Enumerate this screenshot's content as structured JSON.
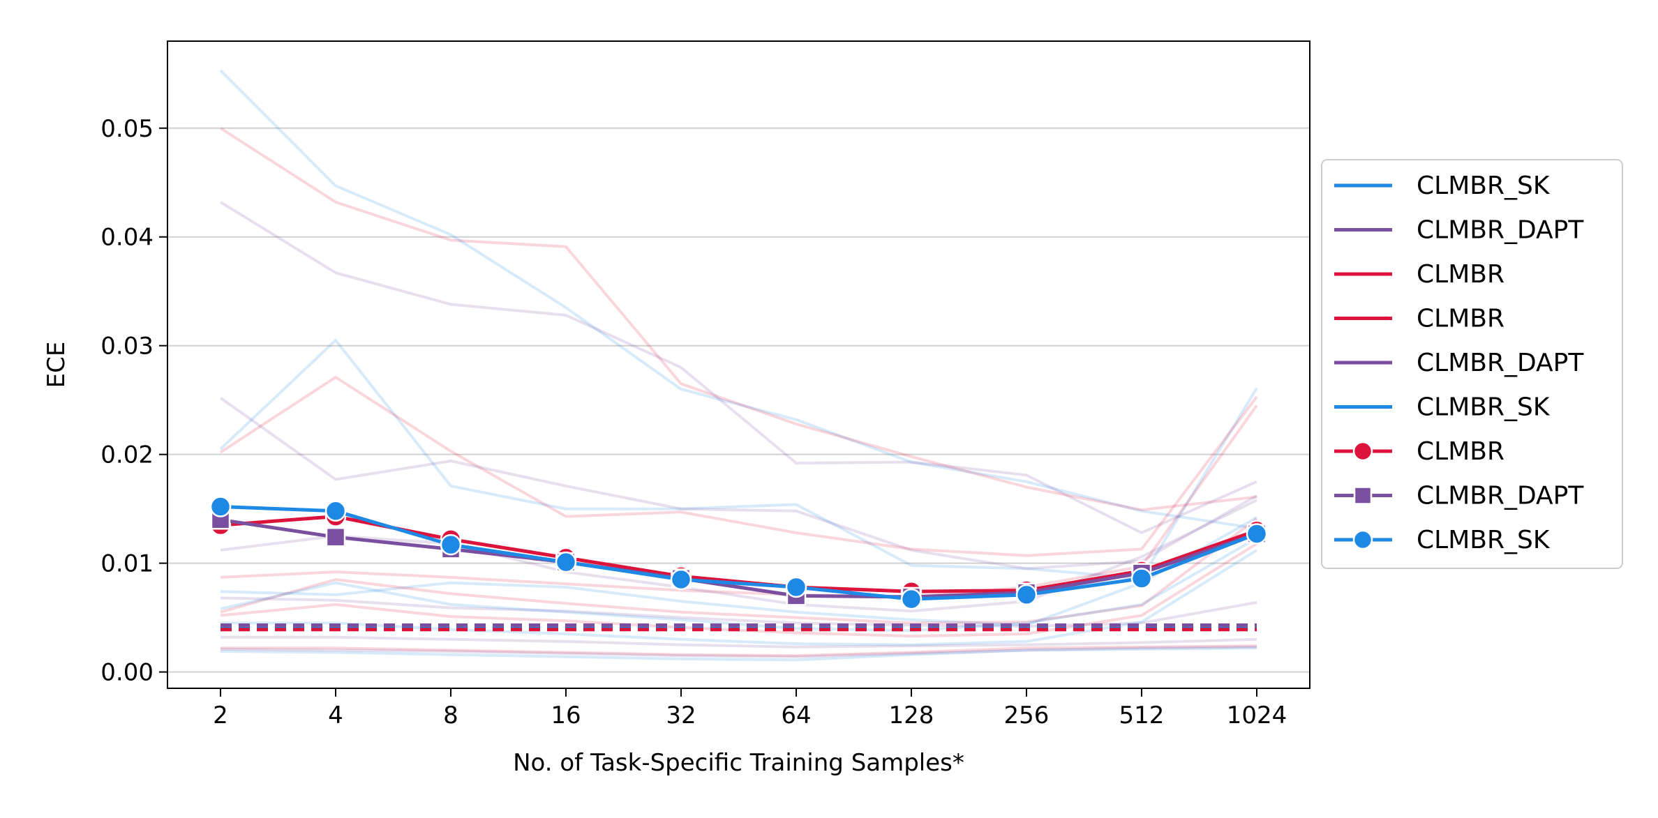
{
  "chart_data": {
    "type": "line",
    "title": "",
    "xlabel": "No. of Task-Specific Training Samples*",
    "ylabel": "ECE",
    "x_categories": [
      "2",
      "4",
      "8",
      "16",
      "32",
      "64",
      "128",
      "256",
      "512",
      "1024"
    ],
    "ylim": [
      -0.0015,
      0.058
    ],
    "yticks": [
      0.0,
      0.01,
      0.02,
      0.03,
      0.04,
      0.05
    ],
    "ytick_labels": [
      "0.00",
      "0.01",
      "0.02",
      "0.03",
      "0.04",
      "0.05"
    ],
    "grid": "horizontal",
    "legend_position": "right",
    "colors": {
      "CLMBR": "#dc143c",
      "CLMBR_DAPT": "#7b4fa0",
      "CLMBR_SK": "#1e88e5"
    },
    "baselines": [
      {
        "name": "CLMBR_SK",
        "value": 0.0041,
        "style": "dashed"
      },
      {
        "name": "CLMBR_DAPT",
        "value": 0.0043,
        "style": "dashed"
      },
      {
        "name": "CLMBR",
        "value": 0.0039,
        "style": "dashed"
      }
    ],
    "series": [
      {
        "name": "CLMBR",
        "marker": "circle",
        "values": [
          0.0135,
          0.0143,
          0.0122,
          0.0105,
          0.0088,
          0.0078,
          0.0074,
          0.0075,
          0.0093,
          0.013
        ]
      },
      {
        "name": "CLMBR_DAPT",
        "marker": "square",
        "values": [
          0.014,
          0.0124,
          0.0113,
          0.0101,
          0.0086,
          0.007,
          0.0069,
          0.0073,
          0.0091,
          0.0127
        ]
      },
      {
        "name": "CLMBR_SK",
        "marker": "circle",
        "values": [
          0.0152,
          0.0148,
          0.0117,
          0.0101,
          0.0085,
          0.0078,
          0.0067,
          0.0071,
          0.0086,
          0.0127
        ]
      }
    ],
    "background_series": [
      {
        "group": "CLMBR_SK",
        "values": [
          0.0553,
          0.0447,
          0.0402,
          0.0335,
          0.026,
          0.0232,
          0.0193,
          0.0175,
          0.0148,
          0.0132
        ]
      },
      {
        "group": "CLMBR",
        "values": [
          0.05,
          0.0432,
          0.0397,
          0.0391,
          0.0265,
          0.0228,
          0.0198,
          0.017,
          0.0149,
          0.0161
        ]
      },
      {
        "group": "CLMBR_DAPT",
        "values": [
          0.0432,
          0.0367,
          0.0338,
          0.0328,
          0.028,
          0.0192,
          0.0193,
          0.0181,
          0.0128,
          0.0175
        ]
      },
      {
        "group": "CLMBR_SK",
        "values": [
          0.0205,
          0.0305,
          0.0171,
          0.015,
          0.015,
          0.0154,
          0.0098,
          0.0095,
          0.0086,
          0.0261
        ]
      },
      {
        "group": "CLMBR",
        "values": [
          0.0202,
          0.0271,
          0.0203,
          0.0143,
          0.0147,
          0.0128,
          0.0113,
          0.0107,
          0.0113,
          0.0253
        ]
      },
      {
        "group": "CLMBR_DAPT",
        "values": [
          0.0252,
          0.0177,
          0.0194,
          0.0171,
          0.015,
          0.0148,
          0.0112,
          0.0095,
          0.0102,
          0.0162
        ]
      },
      {
        "group": "CLMBR",
        "values": [
          0.0087,
          0.0092,
          0.0087,
          0.0081,
          0.0075,
          0.0071,
          0.0069,
          0.0078,
          0.0097,
          0.0245
        ]
      },
      {
        "group": "CLMBR_SK",
        "values": [
          0.0074,
          0.0071,
          0.0082,
          0.0078,
          0.0065,
          0.0055,
          0.0048,
          0.0043,
          0.0082,
          0.0142
        ]
      },
      {
        "group": "CLMBR_DAPT",
        "values": [
          0.0112,
          0.0125,
          0.0118,
          0.0092,
          0.0078,
          0.0062,
          0.0056,
          0.0065,
          0.0106,
          0.0158
        ]
      },
      {
        "group": "CLMBR",
        "values": [
          0.0055,
          0.0085,
          0.0072,
          0.0063,
          0.0055,
          0.005,
          0.0045,
          0.0046,
          0.0061,
          0.0141
        ]
      },
      {
        "group": "CLMBR_DAPT",
        "values": [
          0.0068,
          0.0066,
          0.0059,
          0.0056,
          0.005,
          0.0045,
          0.0043,
          0.0042,
          0.0045,
          0.0064
        ]
      },
      {
        "group": "CLMBR_SK",
        "values": [
          0.0058,
          0.0082,
          0.0062,
          0.0055,
          0.0048,
          0.004,
          0.0038,
          0.0045,
          0.0062,
          0.0123
        ]
      },
      {
        "group": "CLMBR",
        "values": [
          0.0052,
          0.0062,
          0.0051,
          0.0047,
          0.0041,
          0.0036,
          0.0033,
          0.0035,
          0.0052,
          0.0118
        ]
      },
      {
        "group": "CLMBR_SK",
        "values": [
          0.0045,
          0.0045,
          0.0039,
          0.0035,
          0.003,
          0.0026,
          0.0025,
          0.0028,
          0.0046,
          0.0112
        ]
      },
      {
        "group": "CLMBR_DAPT",
        "values": [
          0.0032,
          0.0032,
          0.003,
          0.0028,
          0.0025,
          0.0023,
          0.0024,
          0.0025,
          0.0027,
          0.003
        ]
      },
      {
        "group": "CLMBR",
        "values": [
          0.0022,
          0.0022,
          0.002,
          0.0018,
          0.0016,
          0.0015,
          0.0018,
          0.0022,
          0.0023,
          0.0024
        ]
      },
      {
        "group": "CLMBR_SK",
        "values": [
          0.0019,
          0.0018,
          0.0016,
          0.0014,
          0.0012,
          0.0011,
          0.0016,
          0.002,
          0.0021,
          0.0022
        ]
      },
      {
        "group": "CLMBR_DAPT",
        "values": [
          0.0021,
          0.002,
          0.0019,
          0.0017,
          0.0015,
          0.0014,
          0.0017,
          0.002,
          0.0022,
          0.0023
        ]
      }
    ],
    "legend": [
      {
        "label": "CLMBR_SK",
        "color": "#1e88e5",
        "marker": "none"
      },
      {
        "label": "CLMBR_DAPT",
        "color": "#7b4fa0",
        "marker": "none"
      },
      {
        "label": "CLMBR",
        "color": "#dc143c",
        "marker": "none"
      },
      {
        "label": "CLMBR",
        "color": "#dc143c",
        "marker": "none"
      },
      {
        "label": "CLMBR_DAPT",
        "color": "#7b4fa0",
        "marker": "none"
      },
      {
        "label": "CLMBR_SK",
        "color": "#1e88e5",
        "marker": "none"
      },
      {
        "label": "CLMBR",
        "color": "#dc143c",
        "marker": "circle"
      },
      {
        "label": "CLMBR_DAPT",
        "color": "#7b4fa0",
        "marker": "square"
      },
      {
        "label": "CLMBR_SK",
        "color": "#1e88e5",
        "marker": "circle"
      }
    ]
  }
}
